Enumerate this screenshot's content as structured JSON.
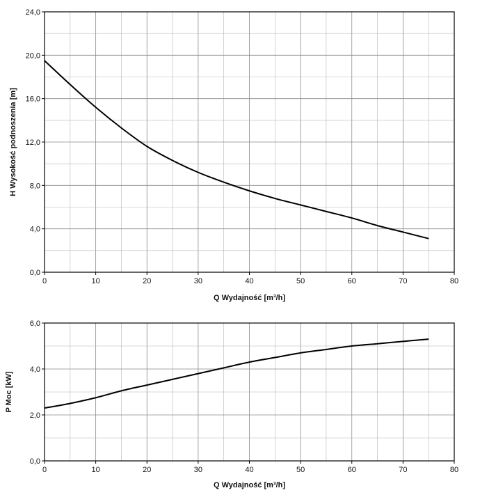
{
  "chart_data": [
    {
      "type": "line",
      "title": "",
      "xlabel": "Q Wydajność [m³/h]",
      "ylabel": "H Wysokość podnoszenia [m]",
      "xlim": [
        0,
        80
      ],
      "ylim": [
        0,
        24
      ],
      "xticks": [
        "0",
        "10",
        "20",
        "30",
        "40",
        "50",
        "60",
        "70",
        "80"
      ],
      "yticks": [
        "0,0",
        "4,0",
        "8,0",
        "12,0",
        "16,0",
        "20,0",
        "24,0"
      ],
      "grid": true,
      "series": [
        {
          "x": [
            0,
            5,
            10,
            15,
            20,
            25,
            30,
            35,
            40,
            45,
            50,
            55,
            60,
            65,
            70,
            75
          ],
          "y": [
            19.5,
            17.3,
            15.2,
            13.3,
            11.6,
            10.3,
            9.2,
            8.3,
            7.5,
            6.8,
            6.2,
            5.6,
            5.0,
            4.3,
            3.7,
            3.1
          ]
        }
      ]
    },
    {
      "type": "line",
      "title": "",
      "xlabel": "Q Wydajność [m³/h]",
      "ylabel": "P Moc [kW]",
      "xlim": [
        0,
        80
      ],
      "ylim": [
        0,
        6
      ],
      "xticks": [
        "0",
        "10",
        "20",
        "30",
        "40",
        "50",
        "60",
        "70",
        "80"
      ],
      "yticks": [
        "0,0",
        "2,0",
        "4,0",
        "6,0"
      ],
      "grid": true,
      "series": [
        {
          "x": [
            0,
            5,
            10,
            15,
            20,
            25,
            30,
            35,
            40,
            45,
            50,
            55,
            60,
            65,
            70,
            75
          ],
          "y": [
            2.3,
            2.5,
            2.75,
            3.05,
            3.3,
            3.55,
            3.8,
            4.05,
            4.3,
            4.5,
            4.7,
            4.85,
            5.0,
            5.1,
            5.2,
            5.3
          ]
        }
      ]
    }
  ]
}
